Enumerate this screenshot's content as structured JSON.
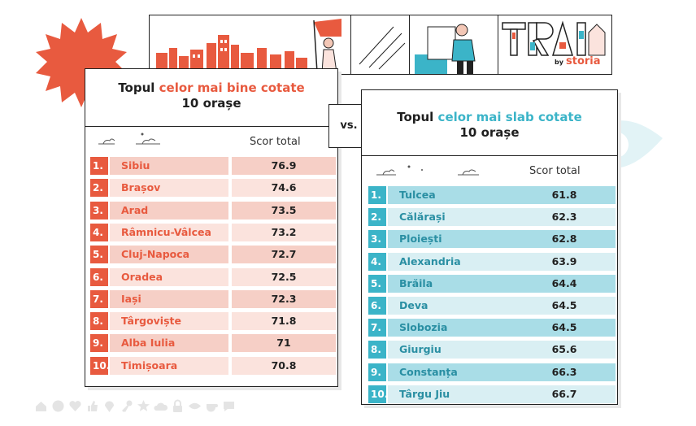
{
  "colors": {
    "red_accent": "#e85a3f",
    "teal_accent": "#3bb4c8",
    "red_row_light": "#fbe3dd",
    "red_row_mid": "#f6cfc6",
    "teal_row_light": "#d9eff3",
    "teal_row_mid": "#a9dde7",
    "icon_gray": "#e4e4e4"
  },
  "logo": {
    "brand": "TRAI",
    "by": "by",
    "partner": "storia"
  },
  "vs_label": "vs.",
  "left_table": {
    "title_prefix": "Topul ",
    "title_highlight": "celor mai bine cotate",
    "title_suffix": "10 orașe",
    "score_header": "Scor total",
    "rows": [
      {
        "rank": "1.",
        "city": "Sibiu",
        "score": "76.9"
      },
      {
        "rank": "2.",
        "city": "Brașov",
        "score": "74.6"
      },
      {
        "rank": "3.",
        "city": "Arad",
        "score": "73.5"
      },
      {
        "rank": "4.",
        "city": "Râmnicu-Vâlcea",
        "score": "73.2"
      },
      {
        "rank": "5.",
        "city": "Cluj-Napoca",
        "score": "72.7"
      },
      {
        "rank": "6.",
        "city": "Oradea",
        "score": "72.5"
      },
      {
        "rank": "7.",
        "city": "Iași",
        "score": "72.3"
      },
      {
        "rank": "8.",
        "city": "Târgoviște",
        "score": "71.8"
      },
      {
        "rank": "9.",
        "city": "Alba Iulia",
        "score": "71"
      },
      {
        "rank": "10.",
        "city": "Timișoara",
        "score": "70.8"
      }
    ]
  },
  "right_table": {
    "title_prefix": "Topul ",
    "title_highlight": "celor mai slab cotate",
    "title_suffix": "10 orașe",
    "score_header": "Scor total",
    "rows": [
      {
        "rank": "1.",
        "city": "Tulcea",
        "score": "61.8"
      },
      {
        "rank": "2.",
        "city": "Călărași",
        "score": "62.3"
      },
      {
        "rank": "3.",
        "city": "Ploiești",
        "score": "62.8"
      },
      {
        "rank": "4.",
        "city": "Alexandria",
        "score": "63.9"
      },
      {
        "rank": "5.",
        "city": "Brăila",
        "score": "64.4"
      },
      {
        "rank": "6.",
        "city": "Deva",
        "score": "64.5"
      },
      {
        "rank": "7.",
        "city": "Slobozia",
        "score": "64.5"
      },
      {
        "rank": "8.",
        "city": "Giurgiu",
        "score": "65.6"
      },
      {
        "rank": "9.",
        "city": "Constanța",
        "score": "66.3"
      },
      {
        "rank": "10.",
        "city": "Târgu Jiu",
        "score": "66.7"
      }
    ]
  },
  "footer_icons": [
    "home-icon",
    "smiley-icon",
    "heart-icon",
    "thumbs-up-icon",
    "location-pin-icon",
    "key-icon",
    "star-icon",
    "cloud-icon",
    "lock-icon",
    "eye-icon",
    "coffee-cup-icon",
    "speech-bubble-icon"
  ]
}
